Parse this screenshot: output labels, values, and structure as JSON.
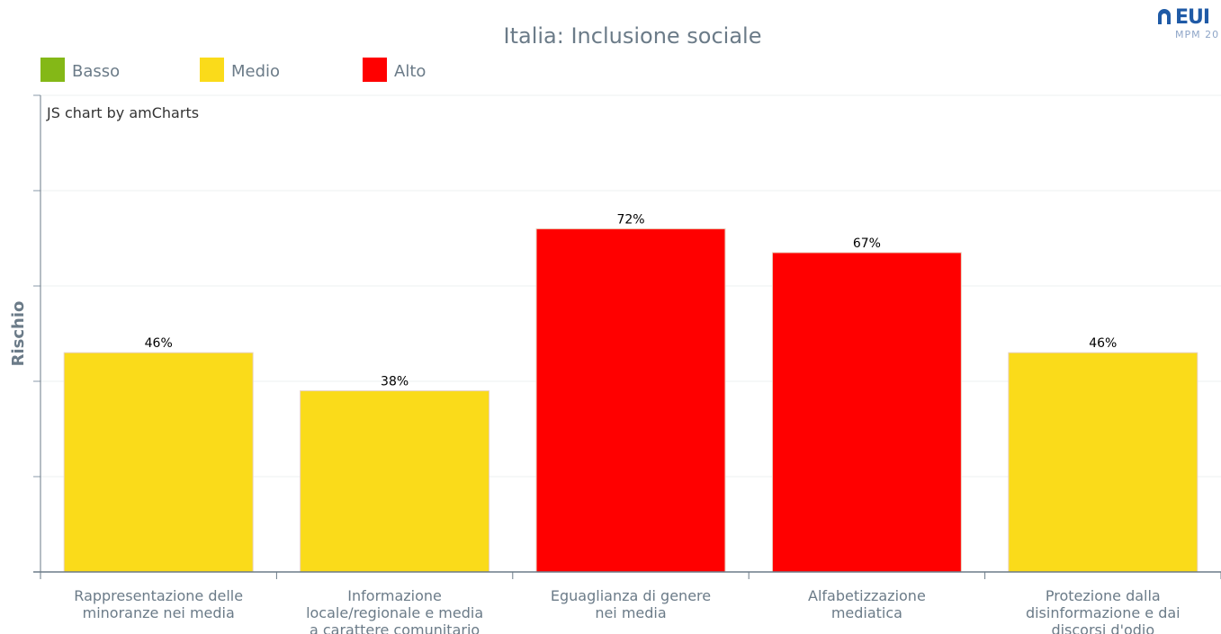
{
  "chart_data": {
    "type": "bar",
    "title": "Italia: Inclusione sociale",
    "ylabel": "Rischio",
    "xlabel": "",
    "ylim": [
      0,
      100
    ],
    "grid": true,
    "legend_position": "top-left",
    "credit": "JS chart by amCharts",
    "legend": [
      {
        "label": "Basso",
        "color": "#84b817"
      },
      {
        "label": "Medio",
        "color": "#fadb1a"
      },
      {
        "label": "Alto",
        "color": "#ff0000"
      }
    ],
    "categories": [
      [
        "Rappresentazione delle",
        "minoranze nei media"
      ],
      [
        "Informazione",
        "locale/regionale e media",
        "a carattere comunitario"
      ],
      [
        "Eguaglianza di genere",
        "nei media"
      ],
      [
        "Alfabetizzazione",
        "mediatica"
      ],
      [
        "Protezione dalla",
        "disinformazione e dai",
        "discorsi d'odio"
      ]
    ],
    "values": [
      46,
      38,
      72,
      67,
      46
    ],
    "value_labels": [
      "46%",
      "38%",
      "72%",
      "67%",
      "46%"
    ],
    "risk_levels": [
      "Medio",
      "Medio",
      "Alto",
      "Alto",
      "Medio"
    ],
    "colors": {
      "Basso": "#84b817",
      "Medio": "#fadb1a",
      "Alto": "#ff0000"
    }
  },
  "logo": {
    "text": "EUI",
    "subtext": "MPM 20"
  }
}
